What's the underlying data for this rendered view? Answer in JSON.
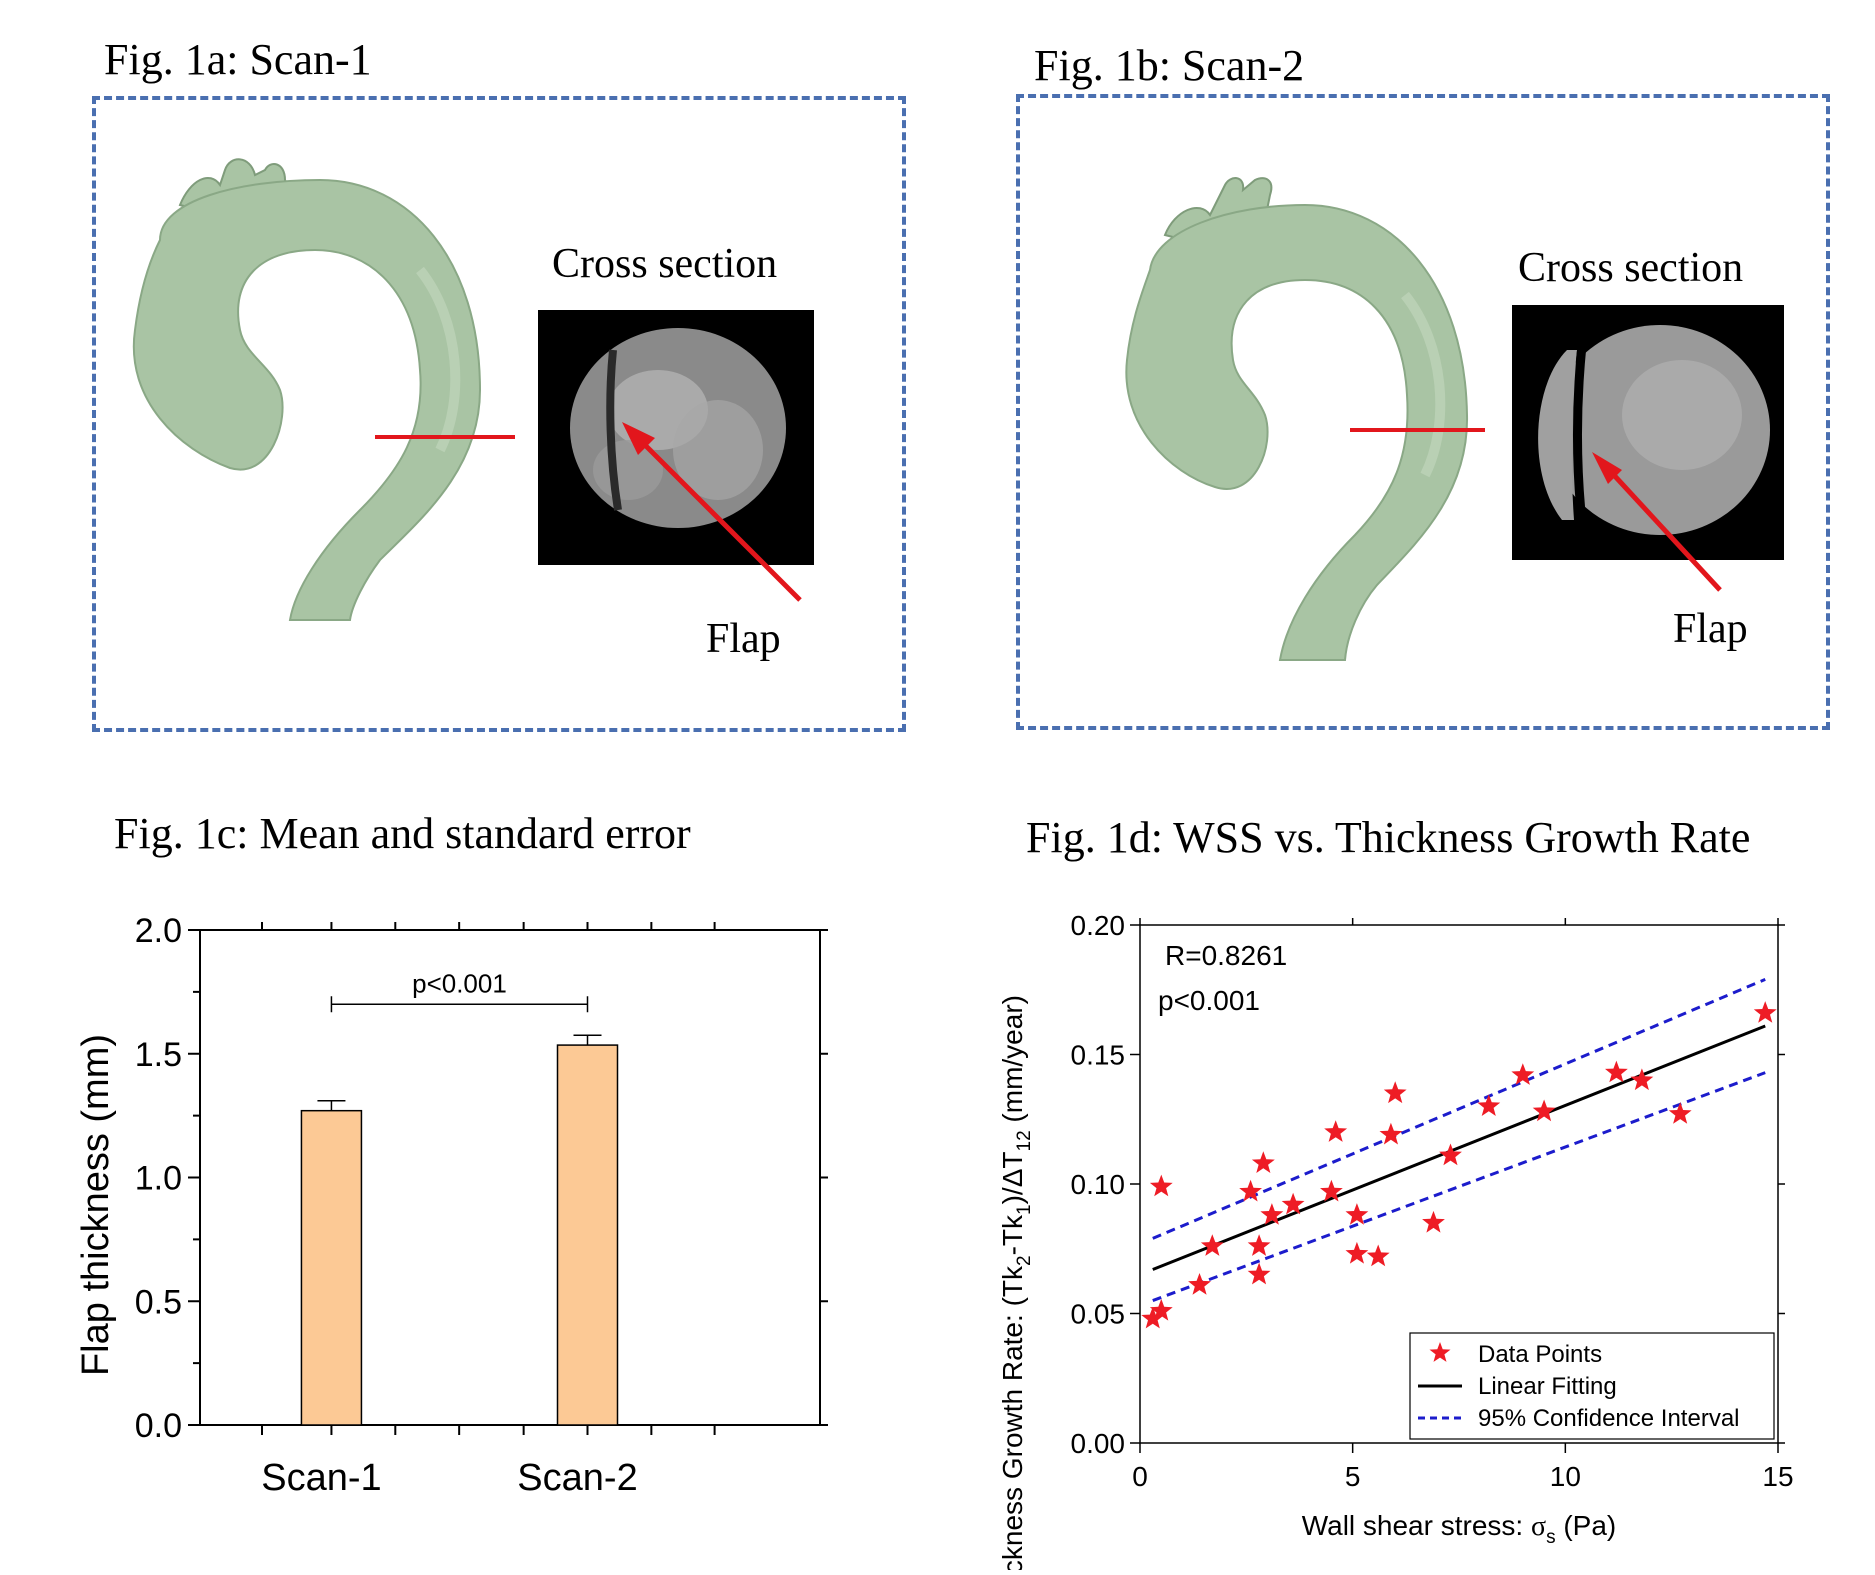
{
  "fig_a": {
    "title": "Fig. 1a: Scan-1",
    "cross_section_label": "Cross section",
    "flap_label": "Flap"
  },
  "fig_b": {
    "title": "Fig. 1b: Scan-2",
    "cross_section_label": "Cross section",
    "flap_label": "Flap"
  },
  "colors": {
    "dash_border": "#4a6fb0",
    "aorta_fill": "#a9c4a4",
    "aorta_shade": "#7f9c7b",
    "red_line": "#e2161c",
    "bar_fill": "#fcc995",
    "scatter_star": "#ee1c25",
    "ci_line": "#1c1ccc"
  },
  "chart_data": [
    {
      "id": "fig_c",
      "type": "bar",
      "title": "Fig. 1c: Mean and standard error",
      "categories": [
        "Scan-1",
        "Scan-2"
      ],
      "values": [
        1.27,
        1.535
      ],
      "errors": [
        0.04,
        0.04
      ],
      "ylabel": "Flap thickness (mm)",
      "xlabel": "",
      "ylim": [
        0,
        2.0
      ],
      "yticks": [
        "0.0",
        "0.5",
        "1.0",
        "1.5",
        "2.0"
      ],
      "significance": "p<0.001"
    },
    {
      "id": "fig_d",
      "type": "scatter",
      "title": "Fig. 1d: WSS vs. Thickness Growth Rate",
      "xlabel_prefix": "Wall shear stress: ",
      "xlabel_symbol": "σ",
      "xlabel_sub": "s",
      "xlabel_suffix": " (Pa)",
      "ylabel_parts": [
        "Thickness Growth Rate: (Tk",
        "2",
        "-Tk",
        "1",
        ")/ΔT",
        "12",
        " (mm/year)"
      ],
      "xlim": [
        0,
        15
      ],
      "ylim": [
        0,
        0.2
      ],
      "xticks": [
        "0",
        "5",
        "10",
        "15"
      ],
      "yticks": [
        "0.00",
        "0.05",
        "0.10",
        "0.15",
        "0.20"
      ],
      "annotations": [
        "R=0.8261",
        "p<0.001"
      ],
      "legend": {
        "position": "bottom-right",
        "entries": [
          "Data Points",
          "Linear Fitting",
          "95% Confidence Interval"
        ]
      },
      "points": [
        [
          0.3,
          0.048
        ],
        [
          0.5,
          0.051
        ],
        [
          0.5,
          0.099
        ],
        [
          1.4,
          0.061
        ],
        [
          1.7,
          0.076
        ],
        [
          2.6,
          0.097
        ],
        [
          2.8,
          0.076
        ],
        [
          2.8,
          0.065
        ],
        [
          2.9,
          0.108
        ],
        [
          3.1,
          0.088
        ],
        [
          3.6,
          0.092
        ],
        [
          4.5,
          0.097
        ],
        [
          4.6,
          0.12
        ],
        [
          5.1,
          0.088
        ],
        [
          5.1,
          0.073
        ],
        [
          5.6,
          0.072
        ],
        [
          5.9,
          0.119
        ],
        [
          6.0,
          0.135
        ],
        [
          6.9,
          0.085
        ],
        [
          7.3,
          0.111
        ],
        [
          8.2,
          0.13
        ],
        [
          9.0,
          0.142
        ],
        [
          9.5,
          0.128
        ],
        [
          11.2,
          0.143
        ],
        [
          11.8,
          0.14
        ],
        [
          12.7,
          0.127
        ],
        [
          14.7,
          0.166
        ]
      ],
      "fit": {
        "x": [
          0.3,
          14.7
        ],
        "y": [
          0.067,
          0.161
        ]
      },
      "ci_upper": {
        "x": [
          0.3,
          14.7
        ],
        "y": [
          0.079,
          0.179
        ]
      },
      "ci_lower": {
        "x": [
          0.3,
          14.7
        ],
        "y": [
          0.055,
          0.143
        ]
      }
    }
  ]
}
